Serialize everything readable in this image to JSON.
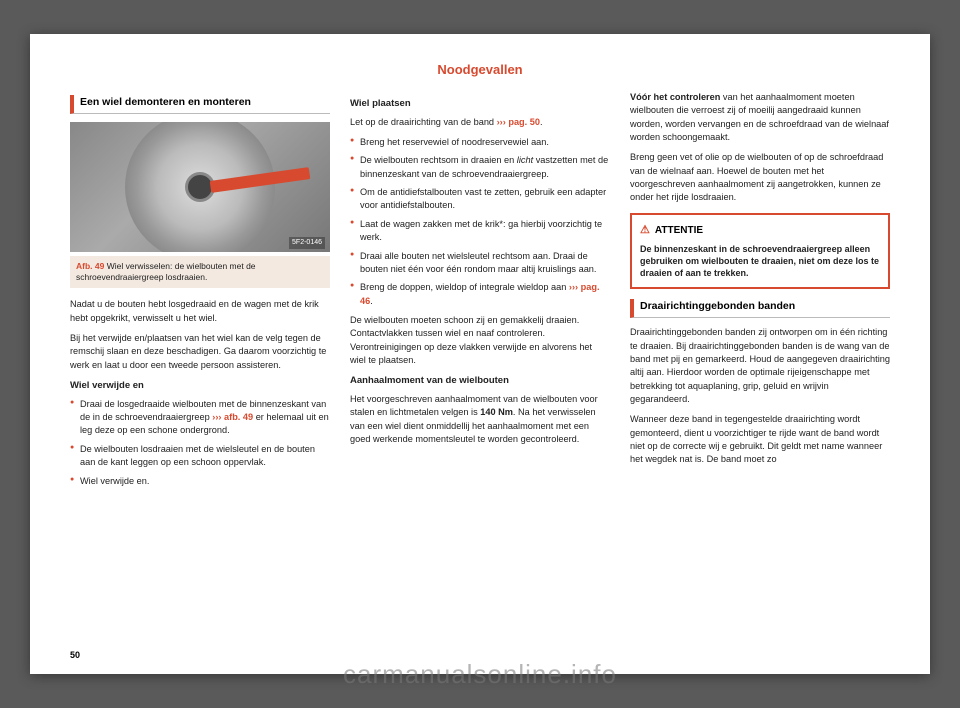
{
  "chapter": "Noodgevallen",
  "pageNumber": "50",
  "watermark": "carmanualsonline.info",
  "colors": {
    "accent": "#d84a2f",
    "captionBg": "#f3e9e0",
    "pageBg": "#ffffff",
    "outerBg": "#5a5a5a"
  },
  "col1": {
    "heading": "Een wiel demonteren en monteren",
    "figureId": "5F2-0146",
    "caption_label": "Afb. 49",
    "caption_text": "  Wiel verwisselen: de wielbouten met de schroevendraaiergreep losdraaien.",
    "p1": "Nadat u de bouten hebt losgedraaid en de wagen met de krik hebt opgekrikt, verwisselt u het wiel.",
    "p2": "Bij het verwijde en/plaatsen van het wiel kan de velg tegen de remschij  slaan en deze be­schadigen. Ga daarom voorzichtig te werk en laat u door een tweede persoon assisteren.",
    "sub1": "Wiel verwijde en",
    "li1a": "Draai de losgedraaide wielbouten met de binnenzeskant van de in de schroevendraai­ergreep ",
    "li1_ref": "››› afb. 49",
    "li1b": " er helemaal uit en leg de­ze op een schone ondergrond.",
    "li2": "De wielbouten losdraaien met de wielsleu­tel en de bouten aan de kant leggen op een schoon oppervlak.",
    "li3": "Wiel verwijde en."
  },
  "col2": {
    "sub1": "Wiel plaatsen",
    "p1a": "Let op de draairichting van de band ",
    "p1_ref": "››› pag. 50",
    "p1b": ".",
    "li1": "Breng het reservewiel of noodreservewiel aan.",
    "li2a": "De wielbouten rechtsom in draaien en ",
    "li2_italic": "licht",
    "li2b": " vastzetten met de binnenzeskant van de schroevendraaiergreep.",
    "li3": "Om de antidiefstalbouten vast te zetten, gebruik een adapter voor antidiefstalbouten.",
    "li4": "Laat de wagen zakken met de krik*: ga hier­bij voorzichtig te werk.",
    "li5": "Draai alle bouten net wielsleutel rechtsom aan. Draai de bouten niet één voor één rond­om maar altij  kruislings aan.",
    "li6a": "Breng de doppen, wieldop of integrale wiel­dop aan ",
    "li6_ref": "››› pag. 46",
    "li6b": ".",
    "p2": "De wielbouten moeten schoon zij  en gemak­kelij  draaien. Contactvlakken tussen wiel en naaf controleren. Verontreinigingen op deze vlakken verwijde en alvorens het wiel te plaatsen.",
    "sub2": "Aanhaalmoment van de wielbouten",
    "p3a": "Het voorgeschreven aanhaalmoment van de wielbouten voor stalen en lichtmetalen vel­gen is ",
    "p3_bold": "140 Nm",
    "p3b": ". Na het verwisselen van een wiel dient onmiddellij  het aanhaalmoment met een goed werkende momentsleutel te worden gecontroleerd."
  },
  "col3": {
    "p1a": "",
    "p1_bold": "Vóór het controleren",
    "p1b": " van het aanhaalmo­ment moeten wielbouten die verroest zij  of moeilij  aangedraaid kunnen worden, worden vervangen en de schroefdraad van de wiel­naaf worden schoongemaakt.",
    "p2": "Breng geen vet of olie op de wielbouten of op de schroefdraad van de wielnaaf aan. Hoe­wel de bouten met het voorgeschreven aan­haalmoment zij  aangetrokken, kunnen ze onder het rijde  losdraaien.",
    "warnTitle": "ATTENTIE",
    "warnBody": "De binnenzeskant in de schroevendraaier­greep alleen gebruiken om wielbouten te draaien, niet om deze los te draaien of aan te trekken.",
    "heading2": "Draairichtinggebonden banden",
    "p3": "Draairichtinggebonden banden zij  ontwor­pen om in één richting te draaien. Bij draai­richtinggebonden banden is de wang van de band met pij en gemarkeerd. Houd de aan­gegeven draairichting altij  aan. Hierdoor worden de optimale rijeigenschappe  met betrekking tot aquaplaning, grip, geluid en wrijvin  gegarandeerd.",
    "p4": "Wanneer deze band in tegengestelde draai­richting wordt gemonteerd, dient u voorzichti­ger te rijde  want de band wordt niet op de correcte wij e gebruikt. Dit geldt met name wanneer het wegdek nat is. De band moet zo"
  }
}
